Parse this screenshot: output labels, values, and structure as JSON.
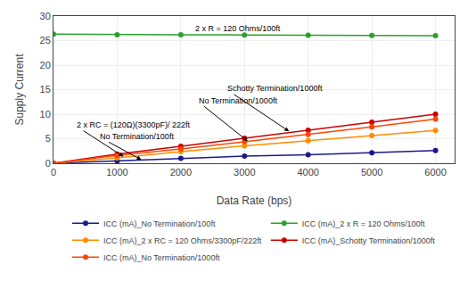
{
  "chart_data": {
    "type": "line",
    "x": [
      0,
      1000,
      2000,
      3000,
      4000,
      5000,
      6000
    ],
    "series": [
      {
        "name": "ICC (mA)_No Termination/100ft",
        "color": "#1a1a8c",
        "values": [
          0,
          0.45,
          1.0,
          1.45,
          1.75,
          2.15,
          2.6
        ]
      },
      {
        "name": "ICC (mA)_2 x R = 120 Ohms/100ft",
        "color": "#2ca02c",
        "values": [
          26.3,
          26.2,
          26.2,
          26.15,
          26.1,
          26.05,
          26.0
        ]
      },
      {
        "name": "ICC (mA)_2 x RC = 120 Ohms/3300pF/222ft",
        "color": "#ff8c00",
        "values": [
          0,
          1.1,
          2.35,
          3.55,
          4.6,
          5.65,
          6.7
        ]
      },
      {
        "name": "ICC (mA)_Schotty Termination/1000ft",
        "color": "#cc0000",
        "values": [
          0,
          1.85,
          3.45,
          5.1,
          6.75,
          8.35,
          10.0
        ]
      },
      {
        "name": "ICC (mA)_No Termination/1000ft",
        "color": "#ff4500",
        "values": [
          0,
          1.6,
          2.9,
          4.4,
          5.85,
          7.4,
          9.0
        ]
      }
    ],
    "xlim": [
      0,
      6300
    ],
    "ylim": [
      0,
      30
    ],
    "xticks": [
      0,
      1000,
      2000,
      3000,
      4000,
      5000,
      6000
    ],
    "yticks": [
      0,
      5,
      10,
      15,
      20,
      25,
      30
    ],
    "xlabel": "Data Rate (bps)",
    "ylabel": "Supply Current",
    "annotations": [
      "2 x R = 120 Ohms/100ft",
      "2 x RC = (120Ω)(3300pF)/ 222ft",
      "No Termination/100ft",
      "No Termination/1000ft",
      "Schotty Termination/1000ft"
    ],
    "marker": "circle",
    "grid": true,
    "legend": "bottom"
  }
}
